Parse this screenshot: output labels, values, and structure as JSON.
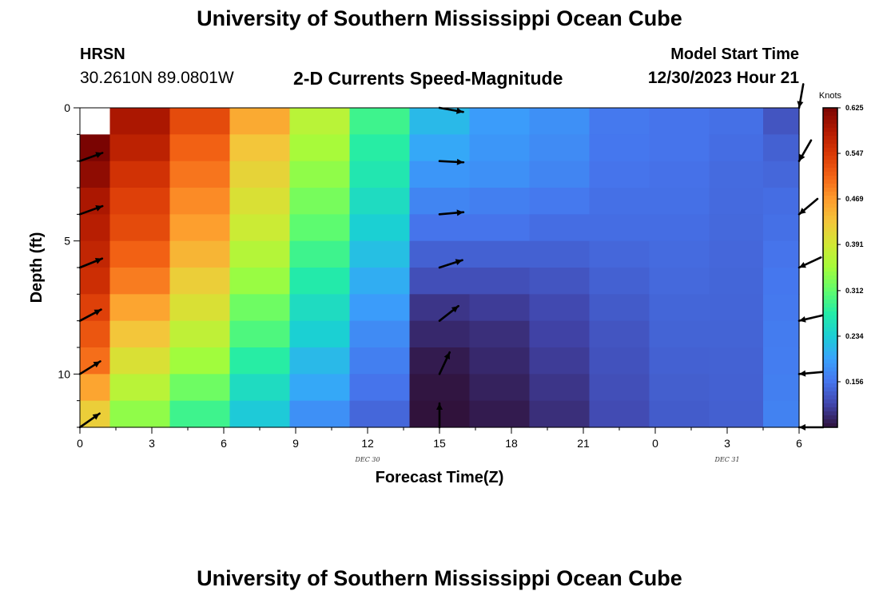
{
  "header": {
    "title": "University of Southern Mississippi Ocean Cube",
    "station": "HRSN",
    "coords": "30.2610N  89.0801W",
    "chart_title": "2-D Currents Speed-Magnitude",
    "model_label": "Model Start Time",
    "model_time": "12/30/2023 Hour 21"
  },
  "footer": {
    "title": "University of Southern Mississippi Ocean Cube"
  },
  "colors": {
    "arrow": "#000000",
    "colormap": [
      "#30123b",
      "#4145ab",
      "#4675ed",
      "#39a2fc",
      "#1bcfd4",
      "#24eca6",
      "#61fc6c",
      "#a4fc3b",
      "#d1e834",
      "#f3c63a",
      "#fe9b2d",
      "#f36315",
      "#d93806",
      "#b11901",
      "#7a0402"
    ]
  },
  "chart_data": {
    "type": "heatmap",
    "title": "2-D Currents Speed-Magnitude",
    "xlabel": "Forecast Time(Z)",
    "ylabel": "Depth (ft)",
    "x_tick_labels": [
      "0",
      "3",
      "6",
      "9",
      "12",
      "15",
      "18",
      "21",
      "0",
      "3",
      "6"
    ],
    "y_tick_labels": [
      "0",
      "5",
      "10"
    ],
    "date_labels": [
      {
        "text": "DEC 30",
        "hour": 12
      },
      {
        "text": "DEC 31",
        "hour": 27
      }
    ],
    "xlim": [
      0,
      30
    ],
    "ylim": [
      0,
      12
    ],
    "colorbar": {
      "unit": "Knots",
      "min": 0.078,
      "max": 0.625,
      "tick_labels": [
        "0.625",
        "0.547",
        "0.469",
        "0.391",
        "0.312",
        "0.234",
        "0.156"
      ],
      "ticks": [
        0.625,
        0.547,
        0.469,
        0.391,
        0.312,
        0.234,
        0.156
      ]
    },
    "columns": [
      {
        "hour": 0,
        "values": [
          null,
          0.625,
          0.61,
          0.59,
          0.58,
          0.57,
          0.56,
          0.54,
          0.52,
          0.5,
          0.46,
          0.42
        ]
      },
      {
        "hour": 2.5,
        "values": [
          0.59,
          0.575,
          0.555,
          0.54,
          0.53,
          0.51,
          0.49,
          0.46,
          0.43,
          0.4,
          0.37,
          0.34
        ]
      },
      {
        "hour": 5,
        "values": [
          0.53,
          0.51,
          0.495,
          0.48,
          0.465,
          0.445,
          0.42,
          0.4,
          0.375,
          0.35,
          0.32,
          0.29
        ]
      },
      {
        "hour": 7.5,
        "values": [
          0.455,
          0.43,
          0.415,
          0.4,
          0.385,
          0.365,
          0.345,
          0.32,
          0.3,
          0.275,
          0.25,
          0.23
        ]
      },
      {
        "hour": 10,
        "values": [
          0.37,
          0.355,
          0.34,
          0.325,
          0.31,
          0.29,
          0.27,
          0.25,
          0.235,
          0.215,
          0.2,
          0.18
        ]
      },
      {
        "hour": 12.5,
        "values": [
          0.29,
          0.275,
          0.265,
          0.25,
          0.235,
          0.22,
          0.205,
          0.19,
          0.175,
          0.165,
          0.155,
          0.145
        ]
      },
      {
        "hour": 15,
        "values": [
          0.215,
          0.2,
          0.185,
          0.17,
          0.155,
          0.14,
          0.125,
          0.105,
          0.095,
          0.085,
          0.08,
          0.078
        ]
      },
      {
        "hour": 17.5,
        "values": [
          0.19,
          0.185,
          0.18,
          0.165,
          0.155,
          0.14,
          0.125,
          0.11,
          0.1,
          0.095,
          0.09,
          0.085
        ]
      },
      {
        "hour": 20,
        "values": [
          0.18,
          0.175,
          0.17,
          0.16,
          0.15,
          0.14,
          0.13,
          0.12,
          0.115,
          0.11,
          0.105,
          0.1
        ]
      },
      {
        "hour": 22.5,
        "values": [
          0.16,
          0.158,
          0.155,
          0.152,
          0.15,
          0.145,
          0.14,
          0.135,
          0.13,
          0.128,
          0.125,
          0.122
        ]
      },
      {
        "hour": 25,
        "values": [
          0.155,
          0.155,
          0.153,
          0.152,
          0.15,
          0.148,
          0.146,
          0.144,
          0.142,
          0.14,
          0.138,
          0.136
        ]
      },
      {
        "hour": 27.5,
        "values": [
          0.152,
          0.15,
          0.148,
          0.147,
          0.146,
          0.145,
          0.144,
          0.143,
          0.142,
          0.141,
          0.14,
          0.139
        ]
      },
      {
        "hour": 29.5,
        "values": [
          0.13,
          0.14,
          0.145,
          0.15,
          0.152,
          0.155,
          0.158,
          0.16,
          0.162,
          0.163,
          0.165,
          0.167
        ]
      }
    ],
    "vectors": [
      {
        "hour": 0,
        "depth": 2,
        "angle_deg": 20
      },
      {
        "hour": 0,
        "depth": 4,
        "angle_deg": 20
      },
      {
        "hour": 0,
        "depth": 6,
        "angle_deg": 22
      },
      {
        "hour": 0,
        "depth": 8,
        "angle_deg": 28
      },
      {
        "hour": 0,
        "depth": 10,
        "angle_deg": 32
      },
      {
        "hour": 0,
        "depth": 12,
        "angle_deg": 35
      },
      {
        "hour": 15,
        "depth": 0,
        "angle_deg": -10
      },
      {
        "hour": 15,
        "depth": 2,
        "angle_deg": -3
      },
      {
        "hour": 15,
        "depth": 4,
        "angle_deg": 5
      },
      {
        "hour": 15,
        "depth": 6,
        "angle_deg": 18
      },
      {
        "hour": 15,
        "depth": 8,
        "angle_deg": 38
      },
      {
        "hour": 15,
        "depth": 10,
        "angle_deg": 65
      },
      {
        "hour": 15,
        "depth": 12,
        "angle_deg": 90
      },
      {
        "hour": 30,
        "depth": 0,
        "angle_deg": -100
      },
      {
        "hour": 30,
        "depth": 2,
        "angle_deg": -120
      },
      {
        "hour": 30,
        "depth": 4,
        "angle_deg": -140
      },
      {
        "hour": 30,
        "depth": 6,
        "angle_deg": -155
      },
      {
        "hour": 30,
        "depth": 8,
        "angle_deg": -167
      },
      {
        "hour": 30,
        "depth": 10,
        "angle_deg": -175
      },
      {
        "hour": 30,
        "depth": 12,
        "angle_deg": 180
      }
    ]
  }
}
